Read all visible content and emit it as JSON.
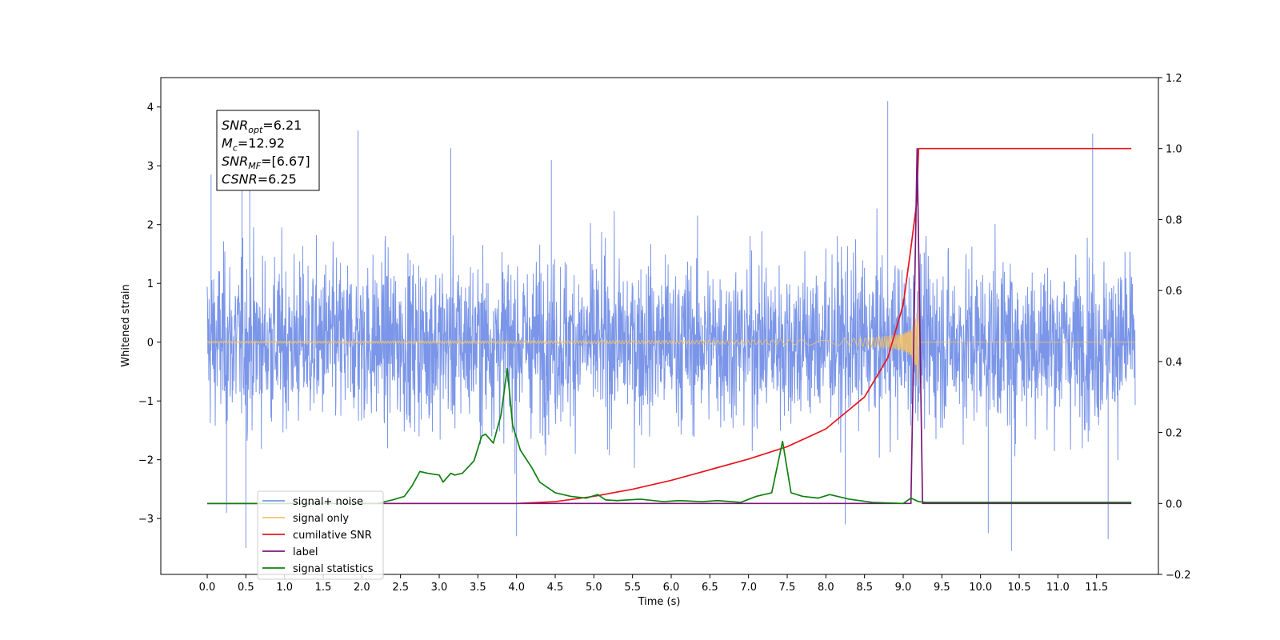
{
  "chart_data": {
    "type": "line",
    "title": "",
    "xlabel": "Time (s)",
    "ylabel": "Whitened strain",
    "xlim": [
      -0.6,
      12.3
    ],
    "ylim": [
      -3.95,
      4.5
    ],
    "y2lim": [
      -0.2,
      1.2
    ],
    "x_ticks": [
      "0.0",
      "0.5",
      "1.0",
      "1.5",
      "2.0",
      "2.5",
      "3.0",
      "3.5",
      "4.0",
      "4.5",
      "5.0",
      "5.5",
      "6.0",
      "6.5",
      "7.0",
      "7.5",
      "8.0",
      "8.5",
      "9.0",
      "9.5",
      "10.0",
      "10.5",
      "11.0",
      "11.5"
    ],
    "y_ticks": [
      "4",
      "3",
      "2",
      "1",
      "0",
      "−1",
      "−2",
      "−3"
    ],
    "y2_ticks": [
      "1.2",
      "1.0",
      "0.8",
      "0.6",
      "0.4",
      "0.2",
      "0.0",
      "−0.2"
    ],
    "grid": false,
    "legend_position": "lower-left",
    "annotation": {
      "lines": [
        {
          "sym": "SNR",
          "sub": "opt",
          "value": "=6.21"
        },
        {
          "sym": "M",
          "sub": "c",
          "value": "=12.92"
        },
        {
          "sym": "SNR",
          "sub": "MF",
          "value": "=[6.67]"
        },
        {
          "sym": "CSNR",
          "sub": "",
          "value": "=6.25"
        }
      ]
    },
    "series": [
      {
        "name": "signal+ noise",
        "color": "#7b96e8",
        "axis": "left",
        "style": "noise",
        "x_range": [
          0.0,
          12.0
        ],
        "envelope_max": 4.1,
        "envelope_min": -3.55,
        "spikes": [
          {
            "x": 0.05,
            "y": 2.85
          },
          {
            "x": 0.5,
            "y": -3.5
          },
          {
            "x": 0.55,
            "y": 2.7
          },
          {
            "x": 0.45,
            "y": 3.1
          },
          {
            "x": 0.25,
            "y": -2.9
          },
          {
            "x": 1.95,
            "y": 3.6
          },
          {
            "x": 3.15,
            "y": 3.3
          },
          {
            "x": 4.0,
            "y": -3.3
          },
          {
            "x": 4.45,
            "y": 3.1
          },
          {
            "x": 8.8,
            "y": 4.1
          },
          {
            "x": 10.4,
            "y": -3.55
          },
          {
            "x": 11.45,
            "y": 3.55
          },
          {
            "x": 11.65,
            "y": -3.35
          },
          {
            "x": 10.1,
            "y": -3.25
          },
          {
            "x": 8.25,
            "y": -3.1
          }
        ]
      },
      {
        "name": "signal only",
        "color": "#f5c266",
        "axis": "left",
        "style": "chirp",
        "x_range": [
          0.0,
          12.0
        ],
        "merger_time": 9.2,
        "peak_amplitude": 0.95
      },
      {
        "name": "cumilative SNR",
        "color": "#e8141e",
        "axis": "right",
        "x": [
          0.0,
          4.0,
          4.5,
          5.0,
          5.5,
          6.0,
          6.5,
          7.0,
          7.5,
          8.0,
          8.5,
          8.8,
          9.0,
          9.1,
          9.17,
          9.2,
          11.95
        ],
        "values": [
          0.0,
          0.0,
          0.005,
          0.02,
          0.04,
          0.065,
          0.095,
          0.125,
          0.16,
          0.21,
          0.3,
          0.41,
          0.56,
          0.72,
          0.84,
          1.0,
          1.0
        ]
      },
      {
        "name": "label",
        "color": "#7a1a7a",
        "axis": "right",
        "x": [
          0.0,
          9.1,
          9.18,
          9.25,
          11.95
        ],
        "values": [
          0.0,
          0.0,
          1.0,
          0.0,
          0.0
        ]
      },
      {
        "name": "signal statistics",
        "color": "#0f800f",
        "axis": "right",
        "x": [
          0.0,
          2.2,
          2.4,
          2.55,
          2.65,
          2.75,
          2.85,
          3.0,
          3.05,
          3.15,
          3.2,
          3.3,
          3.45,
          3.55,
          3.6,
          3.7,
          3.8,
          3.88,
          3.95,
          4.05,
          4.2,
          4.3,
          4.5,
          4.7,
          4.9,
          5.05,
          5.15,
          5.3,
          5.6,
          5.9,
          6.1,
          6.4,
          6.6,
          6.9,
          7.1,
          7.3,
          7.44,
          7.55,
          7.7,
          7.9,
          8.05,
          8.3,
          8.6,
          9.0,
          9.1,
          9.2,
          9.3,
          9.7,
          11.95
        ],
        "values": [
          0.0,
          0.0,
          0.01,
          0.02,
          0.05,
          0.09,
          0.085,
          0.08,
          0.06,
          0.085,
          0.08,
          0.085,
          0.12,
          0.19,
          0.195,
          0.17,
          0.25,
          0.38,
          0.22,
          0.15,
          0.1,
          0.06,
          0.03,
          0.02,
          0.015,
          0.025,
          0.01,
          0.008,
          0.012,
          0.005,
          0.008,
          0.005,
          0.008,
          0.003,
          0.02,
          0.03,
          0.175,
          0.03,
          0.02,
          0.015,
          0.025,
          0.012,
          0.003,
          0.0,
          0.015,
          0.005,
          0.003,
          0.003,
          0.003
        ]
      }
    ]
  }
}
